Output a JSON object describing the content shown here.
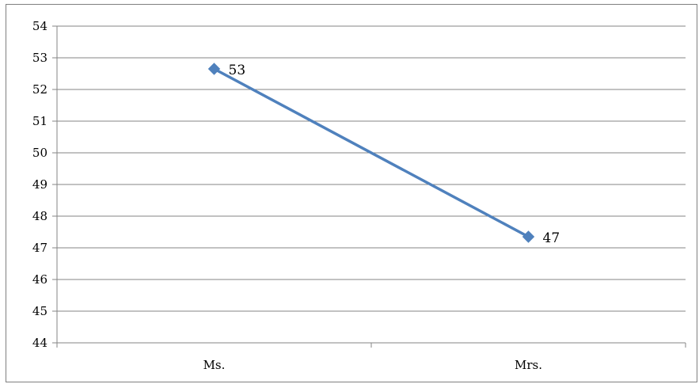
{
  "chart_data": {
    "type": "line",
    "categories": [
      "Ms.",
      "Mrs."
    ],
    "series": [
      {
        "values": [
          52.65,
          47.35
        ],
        "data_labels": [
          "53",
          "47"
        ],
        "color": "#4f81bd"
      }
    ],
    "ylim": [
      44,
      54
    ],
    "yticks": [
      "44",
      "45",
      "46",
      "47",
      "48",
      "49",
      "50",
      "51",
      "52",
      "53",
      "54"
    ],
    "grid": true,
    "legend": "none",
    "marker": "diamond"
  }
}
